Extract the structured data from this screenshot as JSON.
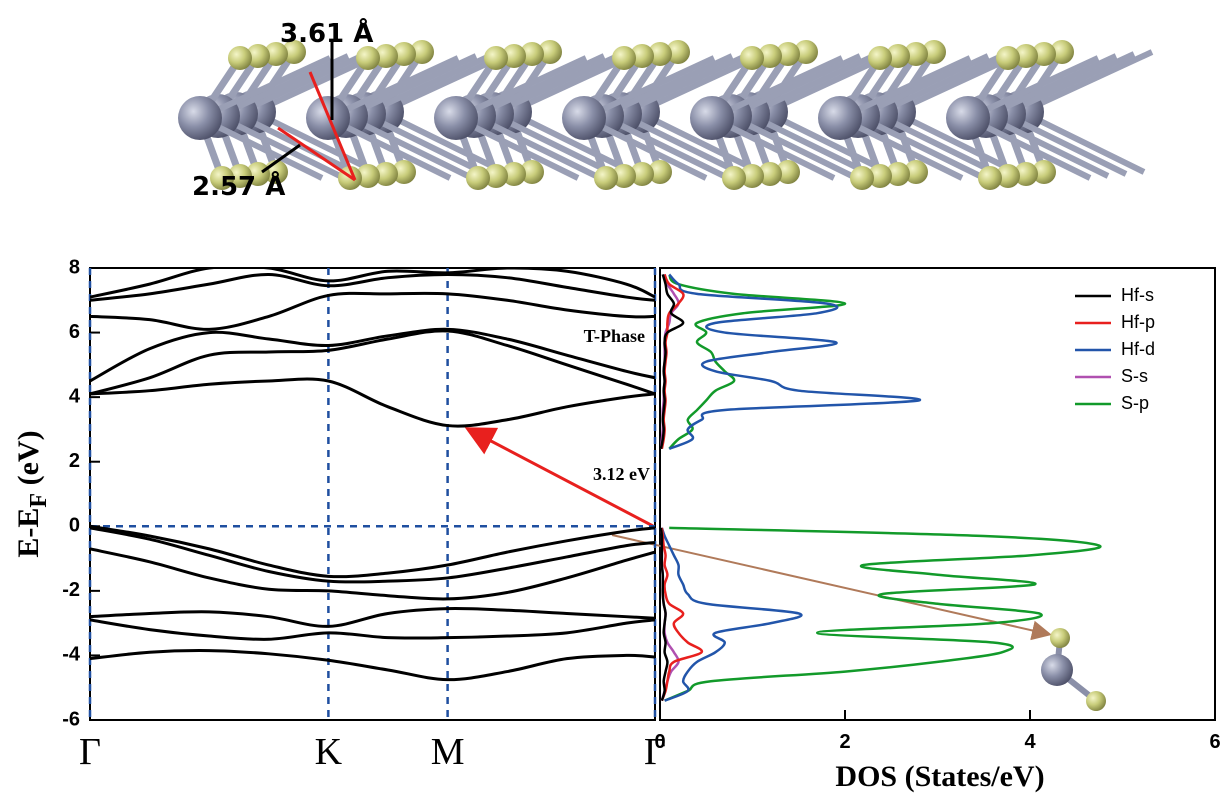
{
  "structure": {
    "labels": [
      "3.61 Å",
      "2.57 Å"
    ]
  },
  "chart_data": [
    {
      "type": "band",
      "ylabel": [
        "E-E",
        "F",
        " (eV)"
      ],
      "x": [
        0,
        0.25,
        0.5,
        0.75,
        1,
        1.25,
        1.5,
        1.75,
        2,
        2.25,
        2.37
      ],
      "xlim": [
        0,
        2.37
      ],
      "xticks": [
        {
          "value": 0,
          "label": "Γ"
        },
        {
          "value": 1,
          "label": "K"
        },
        {
          "value": 1.5,
          "label": "M"
        },
        {
          "value": 2.37,
          "label": "Γ"
        }
      ],
      "ylim": [
        -6,
        8
      ],
      "yticks": [
        -6,
        -4,
        -2,
        0,
        2,
        4,
        6,
        8
      ],
      "grid": "dashed",
      "grid_color": "#1f4fa0",
      "fermi_level": 0,
      "annotations": [
        "T-Phase",
        "3.12 eV"
      ],
      "series": [
        {
          "color": "#000000",
          "values": [
            0,
            -0.3,
            -0.7,
            -1.2,
            -1.55,
            -1.45,
            -1.2,
            -0.8,
            -0.45,
            -0.15,
            -0.05
          ]
        },
        {
          "color": "#000000",
          "values": [
            -0.05,
            -0.4,
            -0.9,
            -1.4,
            -1.7,
            -1.7,
            -1.6,
            -1.3,
            -0.95,
            -0.6,
            -0.5
          ]
        },
        {
          "color": "#000000",
          "values": [
            -0.7,
            -1.1,
            -1.6,
            -1.95,
            -2.0,
            -2.15,
            -2.25,
            -2.05,
            -1.6,
            -1.05,
            -0.8
          ]
        },
        {
          "color": "#000000",
          "values": [
            -2.8,
            -2.7,
            -2.65,
            -2.8,
            -3.1,
            -2.7,
            -2.55,
            -2.6,
            -2.7,
            -2.8,
            -2.85
          ]
        },
        {
          "color": "#000000",
          "values": [
            -2.9,
            -3.2,
            -3.4,
            -3.5,
            -3.3,
            -3.45,
            -3.45,
            -3.4,
            -3.3,
            -3.0,
            -2.9
          ]
        },
        {
          "color": "#000000",
          "values": [
            -4.1,
            -3.9,
            -3.85,
            -3.95,
            -4.15,
            -4.45,
            -4.75,
            -4.5,
            -4.1,
            -4.0,
            -4.05
          ]
        },
        {
          "color": "#000000",
          "values": [
            4.1,
            4.2,
            4.4,
            4.5,
            4.5,
            3.7,
            3.12,
            3.3,
            3.7,
            4.0,
            4.1
          ]
        },
        {
          "color": "#000000",
          "values": [
            4.1,
            4.6,
            5.3,
            5.4,
            5.45,
            5.8,
            6.05,
            5.6,
            5.0,
            4.4,
            4.1
          ]
        },
        {
          "color": "#000000",
          "values": [
            4.5,
            5.5,
            6.0,
            5.8,
            5.6,
            5.9,
            6.1,
            5.8,
            5.3,
            4.8,
            4.6
          ]
        },
        {
          "color": "#000000",
          "values": [
            6.5,
            6.4,
            6.1,
            6.5,
            7.15,
            7.2,
            7.2,
            7.0,
            6.7,
            6.5,
            6.5
          ]
        },
        {
          "color": "#000000",
          "values": [
            7.0,
            7.2,
            7.5,
            7.8,
            7.45,
            7.7,
            7.8,
            7.7,
            7.4,
            7.1,
            7.0
          ]
        },
        {
          "color": "#000000",
          "values": [
            7.1,
            7.5,
            8.0,
            8.0,
            7.6,
            7.9,
            7.85,
            8.0,
            7.9,
            7.5,
            7.1
          ]
        }
      ]
    },
    {
      "type": "dos",
      "xlabel": "DOS (States/eV)",
      "xlim": [
        0,
        6
      ],
      "xticks": [
        0,
        2,
        4,
        6
      ],
      "ylim": [
        -6,
        8
      ],
      "legend": "upper right",
      "y": [
        -5.4,
        -5.1,
        -4.8,
        -4.5,
        -4.2,
        -3.9,
        -3.6,
        -3.3,
        -3.0,
        -2.7,
        -2.4,
        -2.1,
        -1.8,
        -1.5,
        -1.2,
        -0.9,
        -0.6,
        -0.3,
        -0.05,
        1.0,
        2.4,
        2.7,
        3.0,
        3.3,
        3.6,
        3.9,
        4.2,
        4.5,
        4.8,
        5.1,
        5.4,
        5.7,
        6.0,
        6.3,
        6.6,
        6.9,
        7.2,
        7.5,
        7.8
      ],
      "series": [
        {
          "name": "Hf-s",
          "color": "#000000",
          "values": [
            0.02,
            0.05,
            0.04,
            0.06,
            0.08,
            0.05,
            0.06,
            0.04,
            0.05,
            0.06,
            0.04,
            0.03,
            0.03,
            0.03,
            0.02,
            0.02,
            0.02,
            0.02,
            0.01,
            null,
            0.01,
            0.03,
            0.04,
            0.03,
            0.04,
            0.05,
            0.04,
            0.05,
            0.04,
            0.05,
            0.06,
            0.05,
            0.08,
            0.25,
            0.12,
            0.15,
            0.08,
            0.06,
            0.03
          ]
        },
        {
          "name": "Hf-p",
          "color": "#e8201e",
          "values": [
            0.02,
            0.06,
            0.08,
            0.1,
            0.15,
            0.45,
            0.3,
            0.2,
            0.15,
            0.25,
            0.1,
            0.06,
            0.05,
            0.08,
            0.05,
            0.06,
            0.04,
            0.03,
            0.02,
            null,
            0.02,
            0.04,
            0.05,
            0.04,
            0.05,
            0.06,
            0.05,
            0.06,
            0.05,
            0.06,
            0.07,
            0.06,
            0.08,
            0.08,
            0.1,
            0.2,
            0.25,
            0.1,
            0.05
          ]
        },
        {
          "name": "Hf-d",
          "color": "#2255aa",
          "values": [
            0.05,
            0.3,
            0.25,
            0.3,
            0.4,
            0.6,
            0.7,
            0.6,
            1.2,
            1.5,
            0.5,
            0.3,
            0.25,
            0.2,
            0.2,
            0.15,
            0.1,
            0.05,
            0.02,
            null,
            0.1,
            0.35,
            0.3,
            0.45,
            0.7,
            2.8,
            1.5,
            1.2,
            0.6,
            0.5,
            1.2,
            1.9,
            0.7,
            0.6,
            1.7,
            1.8,
            0.4,
            0.2,
            0.1
          ]
        },
        {
          "name": "S-s",
          "color": "#b050b0",
          "values": [
            0.02,
            0.05,
            0.08,
            0.12,
            0.2,
            0.15,
            0.08,
            0.05,
            0.05,
            0.06,
            0.04,
            0.03,
            0.03,
            0.03,
            0.02,
            0.02,
            0.02,
            0.02,
            0.01,
            null,
            0.01,
            0.02,
            0.03,
            0.03,
            0.03,
            0.04,
            0.04,
            0.05,
            0.04,
            0.05,
            0.05,
            0.05,
            0.06,
            0.1,
            0.12,
            0.2,
            0.15,
            0.08,
            0.04
          ]
        },
        {
          "name": "S-p",
          "color": "#129a2a",
          "values": [
            0.05,
            0.3,
            0.55,
            2.0,
            3.0,
            3.7,
            3.6,
            1.7,
            3.6,
            4.1,
            3.0,
            2.4,
            4.05,
            3.0,
            2.2,
            4.0,
            4.75,
            3.5,
            0.1,
            null,
            0.1,
            0.2,
            0.35,
            0.3,
            0.4,
            0.5,
            0.6,
            0.8,
            0.7,
            0.6,
            0.55,
            0.4,
            0.5,
            0.4,
            0.9,
            2.0,
            0.8,
            0.2,
            0.1
          ]
        }
      ]
    }
  ]
}
